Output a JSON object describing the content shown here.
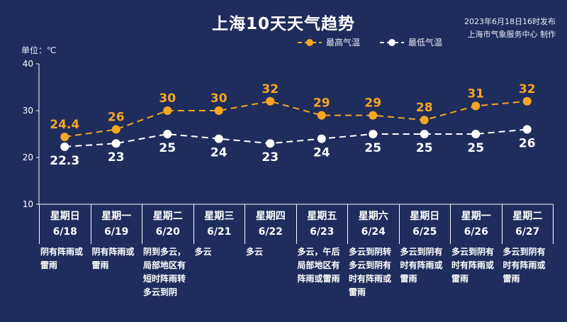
{
  "header": {
    "title": "上海10天天气趋势",
    "publish_line1": "2023年6月18日16时发布",
    "publish_line2": "上海市气象服务中心 制作",
    "unit": "单位：℃"
  },
  "colors": {
    "background": "#1f2d5c",
    "high": "#f5a623",
    "low": "#ffffff"
  },
  "chart_data": {
    "type": "line",
    "ylim": [
      10,
      40
    ],
    "yticks": [
      10,
      20,
      30,
      40
    ],
    "categories": [
      "6/18",
      "6/19",
      "6/20",
      "6/21",
      "6/22",
      "6/23",
      "6/24",
      "6/25",
      "6/26",
      "6/27"
    ],
    "series": [
      {
        "name": "最高气温",
        "values": [
          24.4,
          26,
          30,
          30,
          32,
          29,
          29,
          28,
          31,
          32
        ],
        "labels": [
          "24.4",
          "26",
          "30",
          "30",
          "32",
          "29",
          "29",
          "28",
          "31",
          "32"
        ]
      },
      {
        "name": "最低气温",
        "values": [
          22.3,
          23,
          25,
          24,
          23,
          24,
          25,
          25,
          25,
          26
        ],
        "labels": [
          "22.3",
          "23",
          "25",
          "24",
          "23",
          "24",
          "25",
          "25",
          "25",
          "26"
        ]
      }
    ]
  },
  "days": [
    {
      "weekday": "星期日",
      "date": "6/18",
      "weather": "阴有阵雨或雷雨"
    },
    {
      "weekday": "星期一",
      "date": "6/19",
      "weather": "阴有阵雨或雷雨"
    },
    {
      "weekday": "星期二",
      "date": "6/20",
      "weather": "阴到多云，局部地区有短时阵雨转多云到阴"
    },
    {
      "weekday": "星期三",
      "date": "6/21",
      "weather": "多云"
    },
    {
      "weekday": "星期四",
      "date": "6/22",
      "weather": "多云"
    },
    {
      "weekday": "星期五",
      "date": "6/23",
      "weather": "多云，午后局部地区有阵雨或雷雨"
    },
    {
      "weekday": "星期六",
      "date": "6/24",
      "weather": "多云到阴转多云到阴有时有阵雨或雷雨"
    },
    {
      "weekday": "星期日",
      "date": "6/25",
      "weather": "多云到阴有时有阵雨或雷雨"
    },
    {
      "weekday": "星期一",
      "date": "6/26",
      "weather": "多云到阴有时有阵雨或雷雨"
    },
    {
      "weekday": "星期二",
      "date": "6/27",
      "weather": "多云到阴有时有阵雨或雷雨"
    }
  ]
}
